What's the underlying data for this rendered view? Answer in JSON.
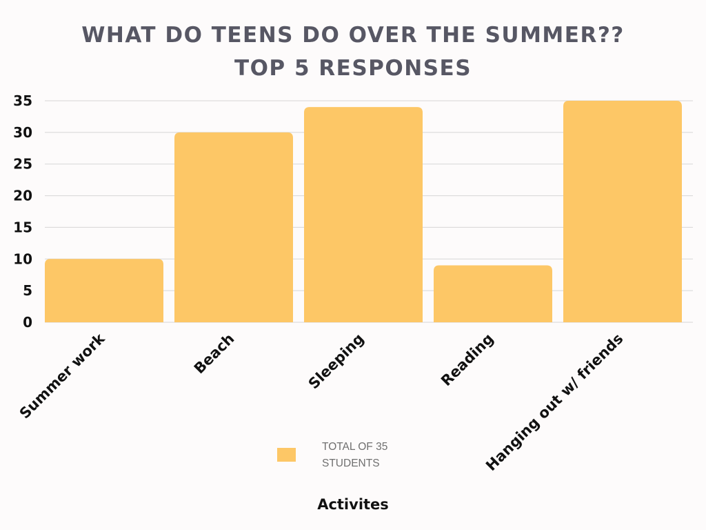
{
  "chart_data": {
    "type": "bar",
    "title": [
      "WHAT DO TEENS DO OVER THE SUMMER??",
      "TOP 5 RESPONSES"
    ],
    "categories": [
      "Summer work",
      "Beach",
      "Sleeping",
      "Reading",
      "Hanging out w/ friends"
    ],
    "series": [
      {
        "name": "TOTAL OF 35 STUDENTS",
        "values": [
          10,
          30,
          34,
          9,
          35
        ],
        "color": "#fdc766"
      }
    ],
    "xlabel": "Activites",
    "ylabel": "",
    "ylim": [
      0,
      35
    ],
    "yticks": [
      "0",
      "5",
      "10",
      "15",
      "20",
      "25",
      "30",
      "35"
    ],
    "grid": true,
    "legend_position": "bottom-center",
    "colors": {
      "bar": "#fdc766",
      "grid": "#d6d6d6",
      "title": "#575764",
      "background": "#fdfbfb"
    }
  }
}
